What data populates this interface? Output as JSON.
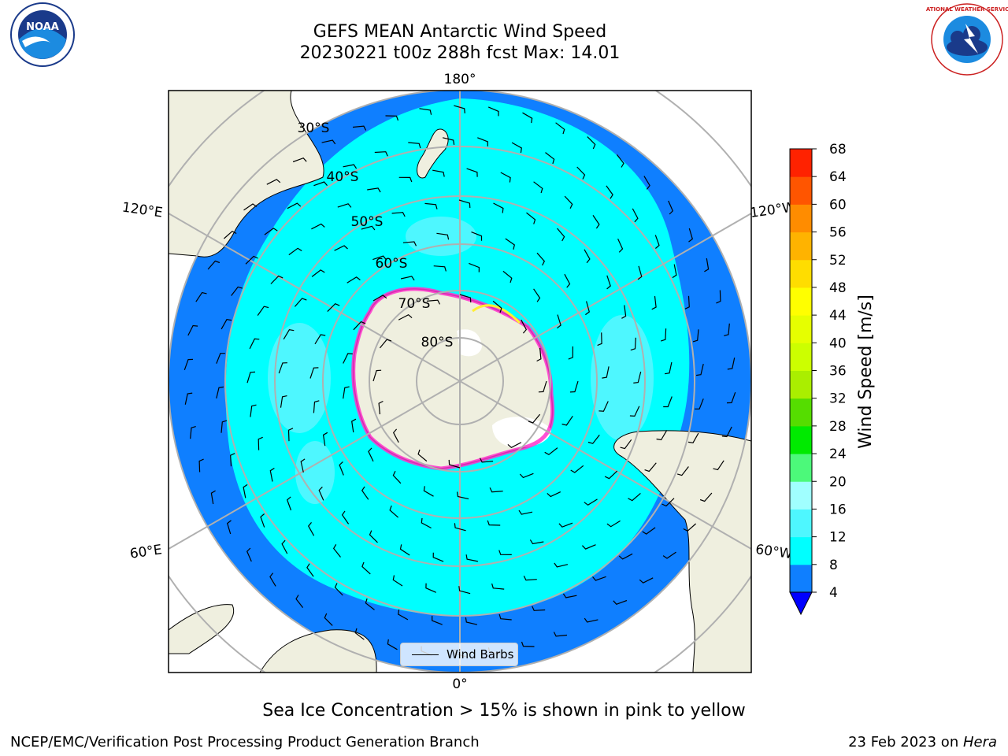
{
  "title": {
    "line1": "GEFS MEAN Antarctic Wind Speed",
    "line2": "20230221 t00z 288h fcst   Max: 14.01"
  },
  "logos": {
    "left": "NOAA",
    "right": "NATIONAL WEATHER SERVICE"
  },
  "map": {
    "projection": "south-polar-stereographic",
    "longitude_labels": {
      "top": "180°",
      "bottom": "0°",
      "upper_left": "120°E",
      "upper_right": "120°W",
      "lower_left": "60°E",
      "lower_right": "60°W"
    },
    "latitude_labels": [
      "30°S",
      "40°S",
      "50°S",
      "60°S",
      "70°S",
      "80°S"
    ],
    "legend_label": "Wind Barbs",
    "colors": {
      "ocean_4_8": "#0f7fff",
      "ocean_8_12": "#00ffff",
      "ocean_12_16": "#4ef7ff",
      "land": "#efefdf",
      "sea_ice_pink": "#ff33cc",
      "sea_ice_yellow": "#ffee33",
      "graticule": "#b0b0b0"
    }
  },
  "colorbar": {
    "label": "Wind Speed [m/s]",
    "ticks": [
      "4",
      "8",
      "12",
      "16",
      "20",
      "24",
      "28",
      "32",
      "36",
      "40",
      "44",
      "48",
      "52",
      "56",
      "60",
      "64",
      "68"
    ],
    "colors": [
      "#0f7fff",
      "#00ffff",
      "#4ef7ff",
      "#a0ffff",
      "#4cf97a",
      "#00ea00",
      "#55dd00",
      "#aaee00",
      "#ccff00",
      "#e6ff00",
      "#ffff00",
      "#ffdd00",
      "#ffb300",
      "#ff8c00",
      "#ff5500",
      "#ff2200"
    ],
    "extend_color": "#0000ff"
  },
  "footnote": "Sea Ice Concentration > 15% is shown in pink to yellow",
  "credits": {
    "left": "NCEP/EMC/Verification Post Processing Product Generation Branch",
    "right_prefix": "23 Feb 2023 on ",
    "right_machine": "Hera"
  }
}
